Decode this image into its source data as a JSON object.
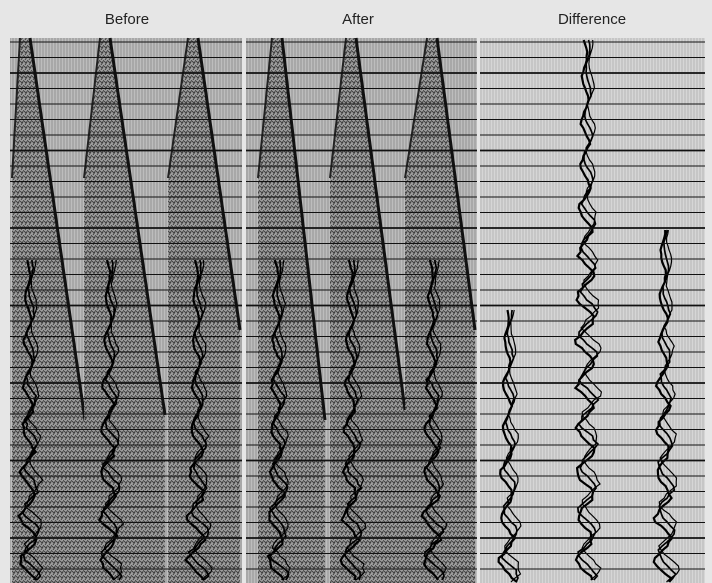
{
  "panels": [
    {
      "title": "Before"
    },
    {
      "title": "After"
    },
    {
      "title": "Difference"
    }
  ]
}
